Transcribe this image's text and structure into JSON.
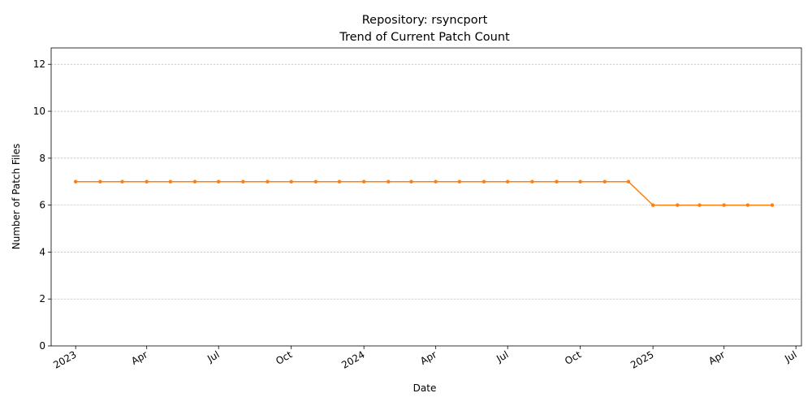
{
  "chart_data": {
    "type": "line",
    "title": "Repository: rsyncport",
    "subtitle": "Trend of Current Patch Count",
    "xlabel": "Date",
    "ylabel": "Number of Patch Files",
    "ylim": [
      0,
      12.7
    ],
    "xlim": [
      "2022-12-01",
      "2025-07-08"
    ],
    "y_ticks": [
      0,
      2,
      4,
      6,
      8,
      10,
      12
    ],
    "x_ticks": [
      {
        "date": "2023-01-01",
        "label": "2023"
      },
      {
        "date": "2023-04-01",
        "label": "Apr"
      },
      {
        "date": "2023-07-01",
        "label": "Jul"
      },
      {
        "date": "2023-10-01",
        "label": "Oct"
      },
      {
        "date": "2024-01-01",
        "label": "2024"
      },
      {
        "date": "2024-04-01",
        "label": "Apr"
      },
      {
        "date": "2024-07-01",
        "label": "Jul"
      },
      {
        "date": "2024-10-01",
        "label": "Oct"
      },
      {
        "date": "2025-01-01",
        "label": "2025"
      },
      {
        "date": "2025-04-01",
        "label": "Apr"
      },
      {
        "date": "2025-07-01",
        "label": "Jul"
      }
    ],
    "grid": "horizontal",
    "color": "#ff7f0e",
    "series": [
      {
        "x": [
          "2023-01-01",
          "2023-02-01",
          "2023-03-01",
          "2023-04-01",
          "2023-05-01",
          "2023-06-01",
          "2023-07-01",
          "2023-08-01",
          "2023-09-01",
          "2023-10-01",
          "2023-11-01",
          "2023-12-01",
          "2024-01-01",
          "2024-02-01",
          "2024-03-01",
          "2024-04-01",
          "2024-05-01",
          "2024-06-01",
          "2024-07-01",
          "2024-08-01",
          "2024-09-01",
          "2024-10-01",
          "2024-11-01",
          "2024-12-01",
          "2025-01-01",
          "2025-02-01",
          "2025-03-01",
          "2025-04-01",
          "2025-05-01",
          "2025-06-01"
        ],
        "values": [
          7,
          7,
          7,
          7,
          7,
          7,
          7,
          7,
          7,
          7,
          7,
          7,
          7,
          7,
          7,
          7,
          7,
          7,
          7,
          7,
          7,
          7,
          7,
          7,
          6,
          6,
          6,
          6,
          6,
          6
        ]
      }
    ]
  }
}
